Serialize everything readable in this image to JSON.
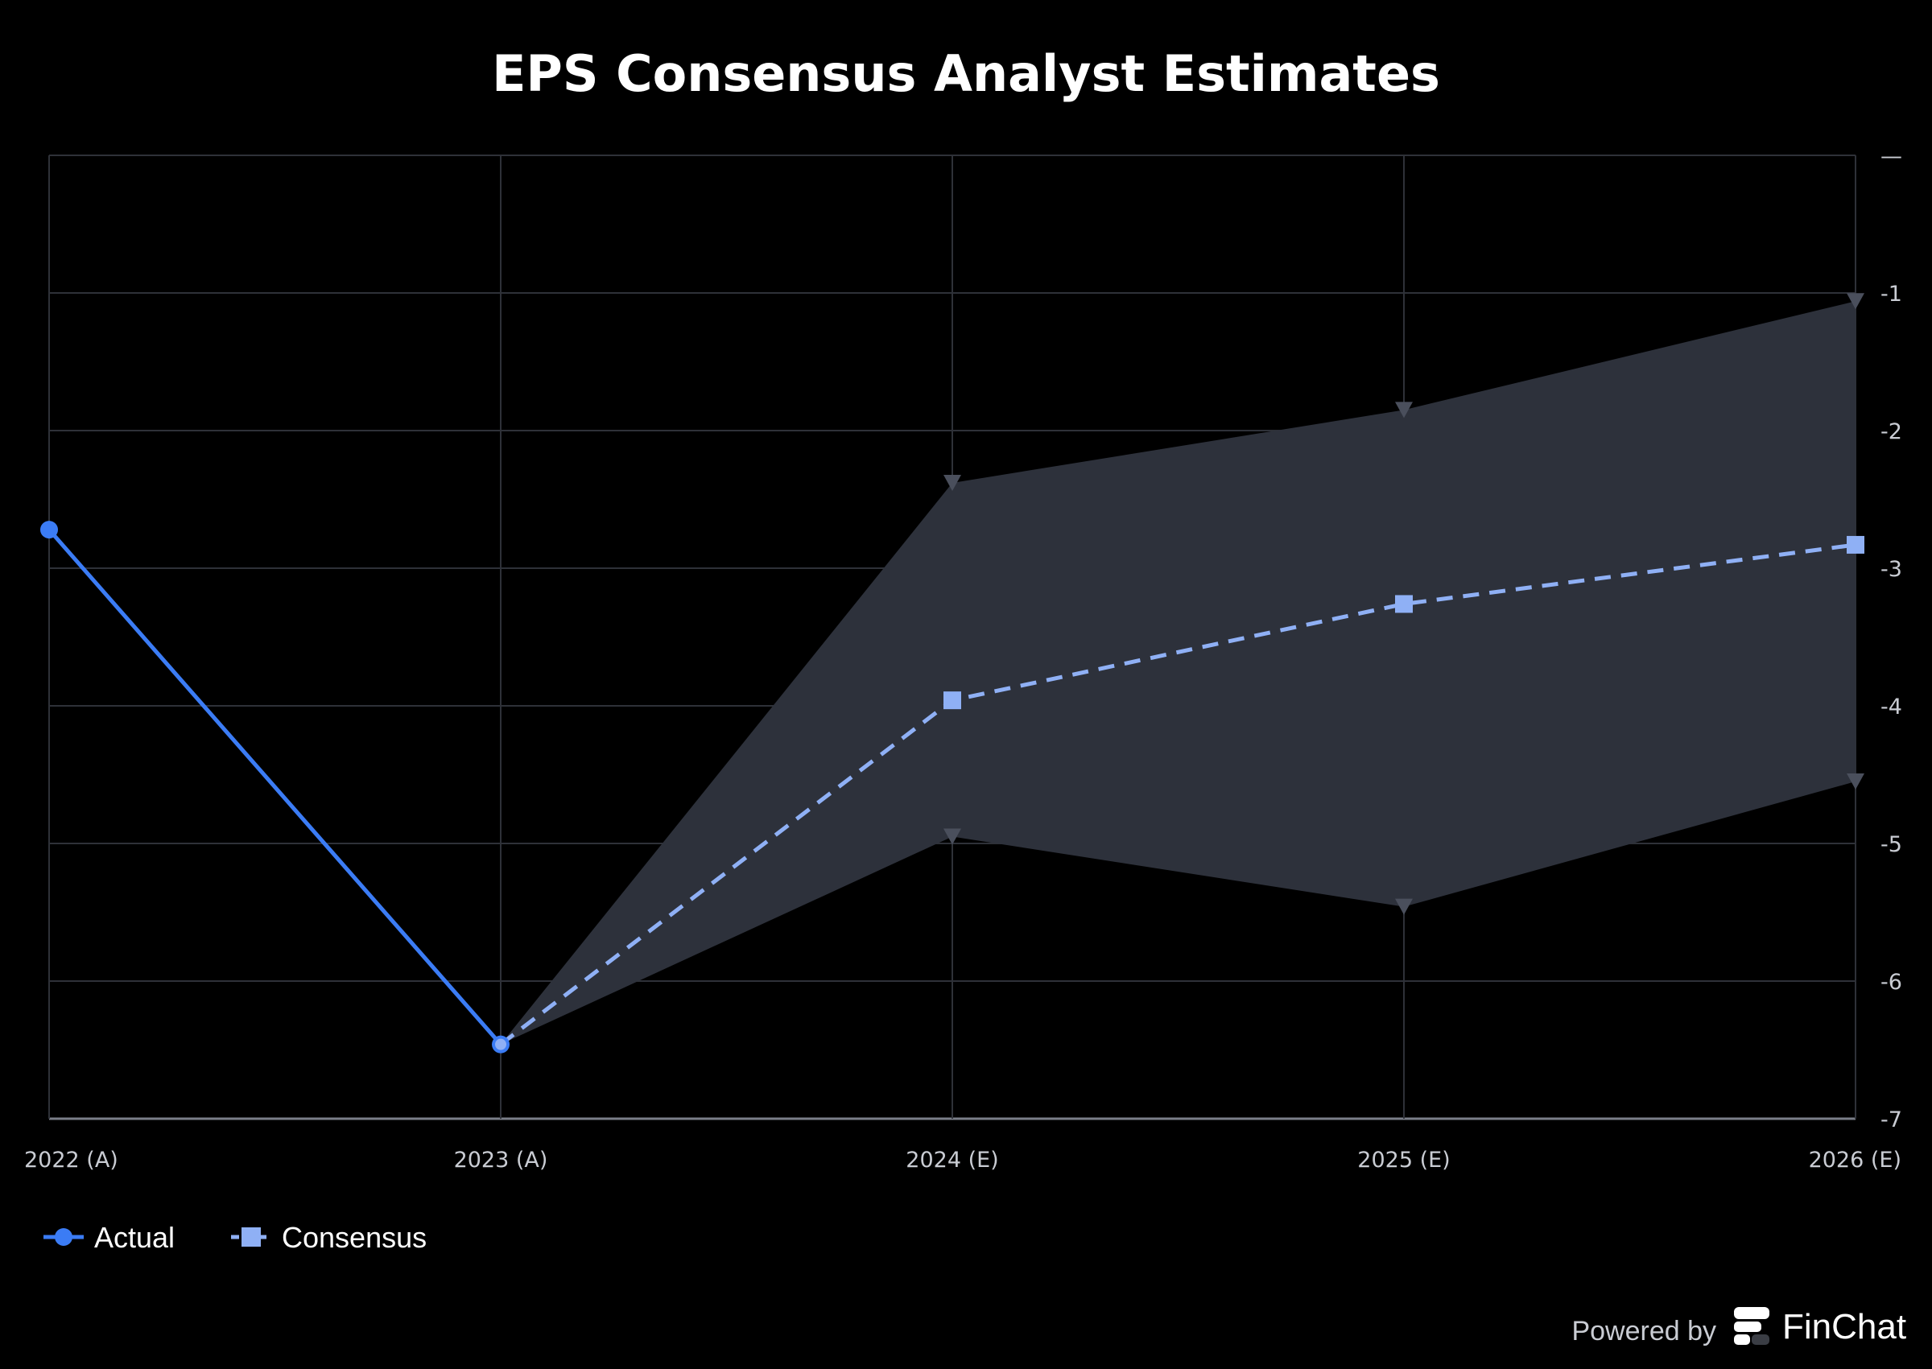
{
  "chart_data": {
    "type": "line",
    "title": "EPS Consensus Analyst Estimates",
    "x": [
      "2022 (A)",
      "2023 (A)",
      "2024 (E)",
      "2025 (E)",
      "2026 (E)"
    ],
    "ylim": [
      -7,
      0
    ],
    "y_ticks": [
      0,
      -1,
      -2,
      -3,
      -4,
      -5,
      -6,
      -7
    ],
    "y_tick_labels": [
      "—",
      "-1",
      "-2",
      "-3",
      "-4",
      "-5",
      "-6",
      "-7"
    ],
    "y_axis_side": "right",
    "grid": true,
    "legend_position": "bottom-left",
    "series": [
      {
        "name": "Actual",
        "values": [
          -2.72,
          -6.46,
          null,
          null,
          null
        ],
        "color": "#3b7cf5",
        "marker": "circle",
        "line_style": "solid"
      },
      {
        "name": "Consensus",
        "values": [
          null,
          -6.46,
          -3.96,
          -3.26,
          -2.83
        ],
        "color": "#8fb0f5",
        "marker": "square",
        "line_style": "dashed"
      }
    ],
    "range": {
      "high": [
        null,
        -6.46,
        -2.38,
        -1.85,
        -1.06
      ],
      "low": [
        null,
        -6.46,
        -4.95,
        -5.46,
        -4.55
      ],
      "fill_color": "#2d313b",
      "marker_color": "#4a4f5c"
    }
  },
  "footer": {
    "powered_by": "Powered by",
    "brand": "FinChat"
  }
}
